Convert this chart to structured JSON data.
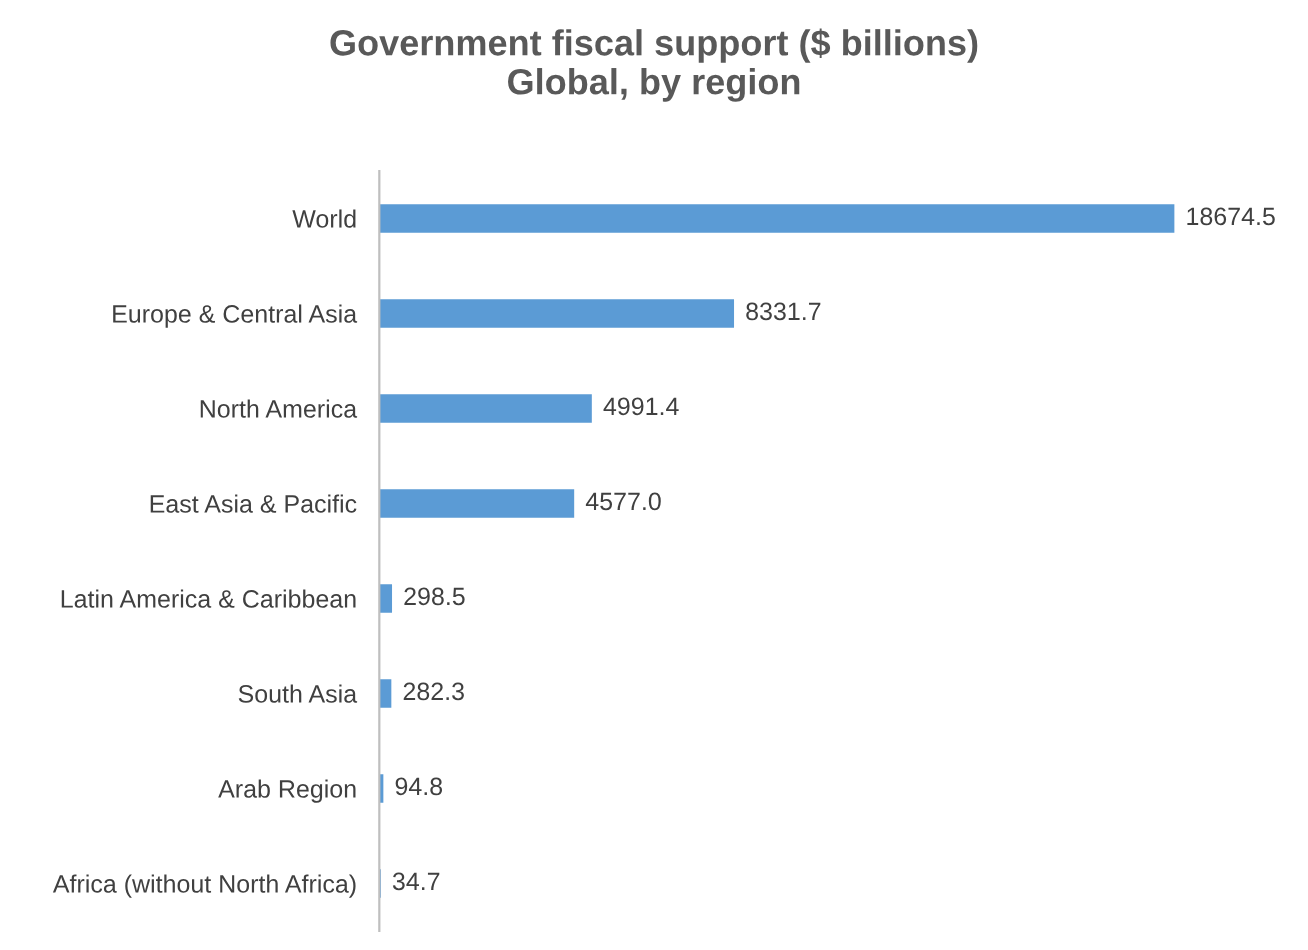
{
  "chart_data": {
    "type": "bar",
    "orientation": "horizontal",
    "title": "Government fiscal support ($ billions)\nGlobal, by region",
    "categories": [
      "World",
      "Europe & Central Asia",
      "North America",
      "East Asia & Pacific",
      "Latin America & Caribbean",
      "South Asia",
      "Arab Region",
      "Africa (without North Africa)"
    ],
    "values": [
      18674.5,
      8331.7,
      4991.4,
      4577.0,
      298.5,
      282.3,
      94.8,
      34.7
    ],
    "value_labels": [
      "18674.5",
      "8331.7",
      "4991.4",
      "4577.0",
      "298.5",
      "282.3",
      "94.8",
      "34.7"
    ],
    "color": "#5b9bd5",
    "grid": false,
    "legend": false
  }
}
